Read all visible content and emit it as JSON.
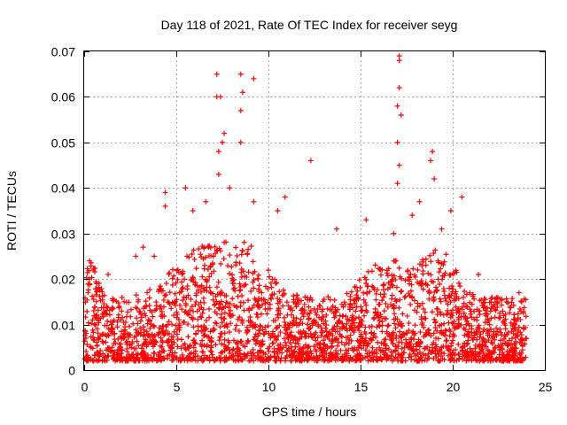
{
  "chart_data": {
    "type": "scatter",
    "title": "Day 118 of 2021, Rate Of TEC Index for receiver seyg",
    "xlabel": "GPS time / hours",
    "ylabel": "ROTI / TECUs",
    "xlim": [
      0,
      25
    ],
    "ylim": [
      0,
      0.07
    ],
    "x_ticks": [
      0,
      5,
      10,
      15,
      20,
      25
    ],
    "x_tick_labels": [
      "0",
      "5",
      "10",
      "15",
      "20",
      "25"
    ],
    "y_ticks": [
      0,
      0.01,
      0.02,
      0.03,
      0.04,
      0.05,
      0.06,
      0.07
    ],
    "y_tick_labels": [
      "0",
      "0.01",
      "0.02",
      "0.03",
      "0.04",
      "0.05",
      "0.06",
      "0.07"
    ],
    "grid": true,
    "marker": "plus",
    "marker_color": "#ff0000",
    "series": [
      {
        "name": "ROTI",
        "note": "dense scatter, ~0.002-0.02 TECU/s typical across 0-24 h; envelope peaks listed",
        "points": [
          [
            0.3,
            0.024
          ],
          [
            0.5,
            0.022
          ],
          [
            1.3,
            0.021
          ],
          [
            2.8,
            0.025
          ],
          [
            3.2,
            0.027
          ],
          [
            3.8,
            0.025
          ],
          [
            4.4,
            0.039
          ],
          [
            4.4,
            0.036
          ],
          [
            5.5,
            0.04
          ],
          [
            5.9,
            0.035
          ],
          [
            6.6,
            0.037
          ],
          [
            7.2,
            0.065
          ],
          [
            7.2,
            0.06
          ],
          [
            7.4,
            0.06
          ],
          [
            7.5,
            0.05
          ],
          [
            7.6,
            0.052
          ],
          [
            7.3,
            0.048
          ],
          [
            7.3,
            0.043
          ],
          [
            7.9,
            0.04
          ],
          [
            8.5,
            0.065
          ],
          [
            8.6,
            0.061
          ],
          [
            8.5,
            0.057
          ],
          [
            8.5,
            0.05
          ],
          [
            9.2,
            0.064
          ],
          [
            9.2,
            0.037
          ],
          [
            10.5,
            0.035
          ],
          [
            10.9,
            0.038
          ],
          [
            12.3,
            0.046
          ],
          [
            13.7,
            0.031
          ],
          [
            15.3,
            0.033
          ],
          [
            16.8,
            0.03
          ],
          [
            17.1,
            0.069
          ],
          [
            17.1,
            0.068
          ],
          [
            17.1,
            0.062
          ],
          [
            17.0,
            0.058
          ],
          [
            17.2,
            0.056
          ],
          [
            17.0,
            0.05
          ],
          [
            17.1,
            0.045
          ],
          [
            17.0,
            0.041
          ],
          [
            17.8,
            0.034
          ],
          [
            18.2,
            0.037
          ],
          [
            18.9,
            0.048
          ],
          [
            18.8,
            0.046
          ],
          [
            19.0,
            0.042
          ],
          [
            19.4,
            0.031
          ],
          [
            19.9,
            0.035
          ],
          [
            20.5,
            0.038
          ],
          [
            21.4,
            0.021
          ],
          [
            22.4,
            0.015
          ],
          [
            23.6,
            0.017
          ]
        ]
      }
    ]
  }
}
